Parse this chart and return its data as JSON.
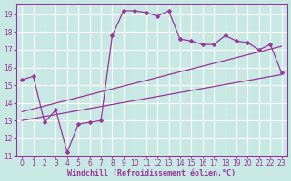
{
  "xlabel": "Windchill (Refroidissement éolien,°C)",
  "xlim_min": -0.5,
  "xlim_max": 23.5,
  "ylim_min": 11,
  "ylim_max": 19.6,
  "yticks": [
    11,
    12,
    13,
    14,
    15,
    16,
    17,
    18,
    19
  ],
  "xticks": [
    0,
    1,
    2,
    3,
    4,
    5,
    6,
    7,
    8,
    9,
    10,
    11,
    12,
    13,
    14,
    15,
    16,
    17,
    18,
    19,
    20,
    21,
    22,
    23
  ],
  "bg_color": "#c8e8e4",
  "grid_color": "#aed4d0",
  "line_color": "#993399",
  "line1_x": [
    0,
    1,
    2,
    3,
    4,
    5,
    6,
    7,
    8,
    9,
    10,
    11,
    12,
    13,
    14,
    15,
    16,
    17,
    18,
    19,
    20,
    21,
    22,
    23
  ],
  "line1_y": [
    15.3,
    15.5,
    12.9,
    13.6,
    11.2,
    12.8,
    12.9,
    13.0,
    17.8,
    19.2,
    19.2,
    19.1,
    18.9,
    19.2,
    17.6,
    17.5,
    17.3,
    17.3,
    17.8,
    17.5,
    17.4,
    17.0,
    17.3,
    15.7
  ],
  "line2_x": [
    0,
    23
  ],
  "line2_y": [
    13.5,
    17.2
  ],
  "line3_x": [
    0,
    23
  ],
  "line3_y": [
    13.0,
    15.6
  ],
  "marker_style": "D",
  "marker_size": 2.5,
  "linewidth": 0.9,
  "tick_fontsize": 5.5,
  "xlabel_fontsize": 6.0
}
